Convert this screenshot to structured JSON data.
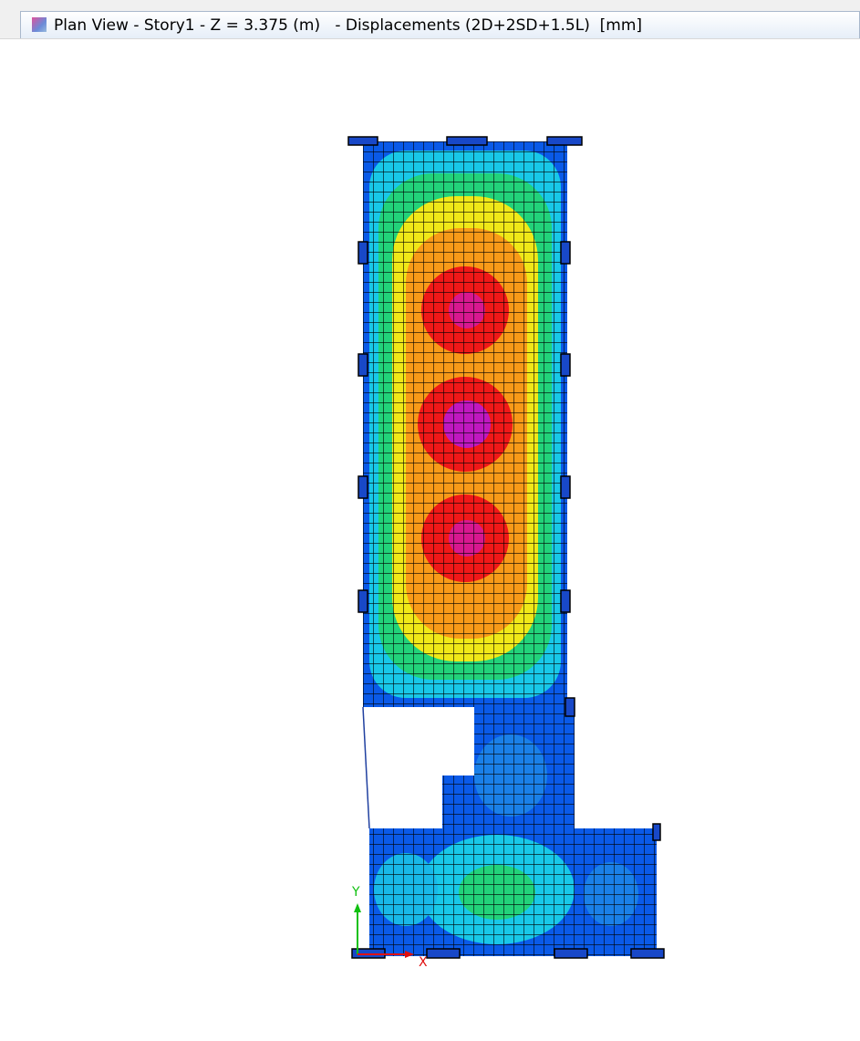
{
  "window": {
    "title": "Plan View - Story1 - Z = 3.375 (m)   - Displacements (2D+2SD+1.5L)  [mm]"
  },
  "axes": {
    "x_label": "X",
    "y_label": "Y"
  }
}
